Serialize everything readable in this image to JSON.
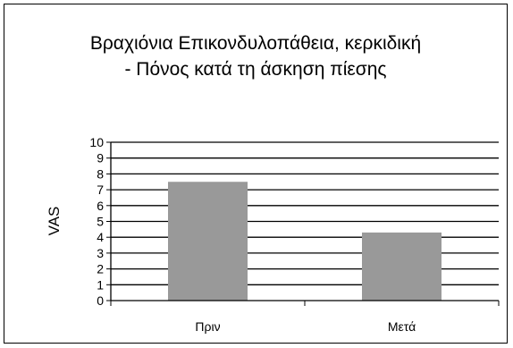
{
  "chart_data": {
    "type": "bar",
    "title_lines": [
      "Βραχιόνια Επικονδυλοπάθεια, κερκιδική",
      "- Πόνος κατά τη άσκηση πίεσης"
    ],
    "categories": [
      "Πριν",
      "Μετά"
    ],
    "values": [
      7.5,
      4.3
    ],
    "xlabel": "",
    "ylabel": "VAS",
    "ylim": [
      0,
      10
    ],
    "yticks": [
      "0",
      "1",
      "2",
      "3",
      "4",
      "5",
      "6",
      "7",
      "8",
      "9",
      "10"
    ],
    "grid": true,
    "legend": "none",
    "bar_color": "#999999",
    "gridline_color": "#000000"
  }
}
